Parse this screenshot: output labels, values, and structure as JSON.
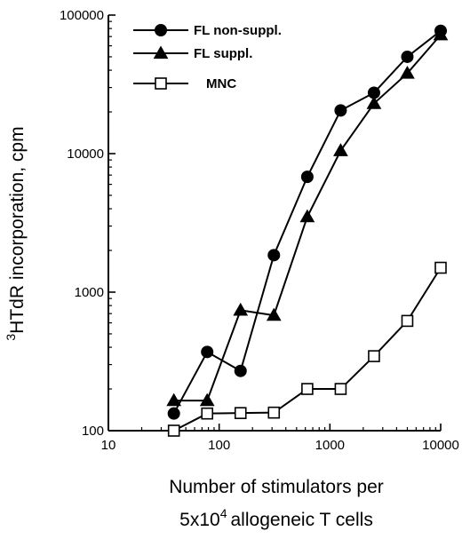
{
  "chart_data": {
    "type": "line",
    "x_scale": "log",
    "y_scale": "log",
    "xlim": [
      10,
      10000
    ],
    "ylim": [
      100,
      100000
    ],
    "x_ticks": [
      {
        "value": 10,
        "label": "10"
      },
      {
        "value": 100,
        "label": "100"
      },
      {
        "value": 1000,
        "label": "1000"
      },
      {
        "value": 10000,
        "label": "10000"
      }
    ],
    "y_ticks": [
      {
        "value": 100,
        "label": "100"
      },
      {
        "value": 1000,
        "label": "1000"
      },
      {
        "value": 10000,
        "label": "10000"
      },
      {
        "value": 100000,
        "label": "100000"
      }
    ],
    "ylabel": {
      "sup": "3",
      "text": "HTdR incorporation, cpm"
    },
    "xlabel": {
      "line1": "Number of stimulators per",
      "line2_prefix": "5x10",
      "line2_sup": "4",
      "line2_suffix": "allogeneic T cells"
    },
    "grid": false,
    "legend_position": "top-left",
    "series": [
      {
        "name": "FL non-suppl.",
        "marker": "circle",
        "color": "#000000",
        "points": [
          {
            "x": 39,
            "y": 133
          },
          {
            "x": 78,
            "y": 370
          },
          {
            "x": 156,
            "y": 270
          },
          {
            "x": 312,
            "y": 1850
          },
          {
            "x": 625,
            "y": 6800
          },
          {
            "x": 1250,
            "y": 20500
          },
          {
            "x": 2500,
            "y": 27500
          },
          {
            "x": 5000,
            "y": 50000
          },
          {
            "x": 10000,
            "y": 77000
          }
        ]
      },
      {
        "name": "FL suppl.",
        "marker": "triangle",
        "color": "#000000",
        "points": [
          {
            "x": 39,
            "y": 165
          },
          {
            "x": 78,
            "y": 165
          },
          {
            "x": 156,
            "y": 740
          },
          {
            "x": 312,
            "y": 680
          },
          {
            "x": 625,
            "y": 3500
          },
          {
            "x": 1250,
            "y": 10500
          },
          {
            "x": 2500,
            "y": 23000
          },
          {
            "x": 5000,
            "y": 38000
          },
          {
            "x": 10000,
            "y": 72000
          }
        ]
      },
      {
        "name": "MNC",
        "marker": "square-open",
        "color": "#000000",
        "points": [
          {
            "x": 39,
            "y": 100
          },
          {
            "x": 78,
            "y": 133
          },
          {
            "x": 156,
            "y": 134
          },
          {
            "x": 312,
            "y": 135
          },
          {
            "x": 625,
            "y": 200
          },
          {
            "x": 1250,
            "y": 200
          },
          {
            "x": 2500,
            "y": 345
          },
          {
            "x": 5000,
            "y": 620
          },
          {
            "x": 10000,
            "y": 1500
          }
        ]
      }
    ]
  }
}
